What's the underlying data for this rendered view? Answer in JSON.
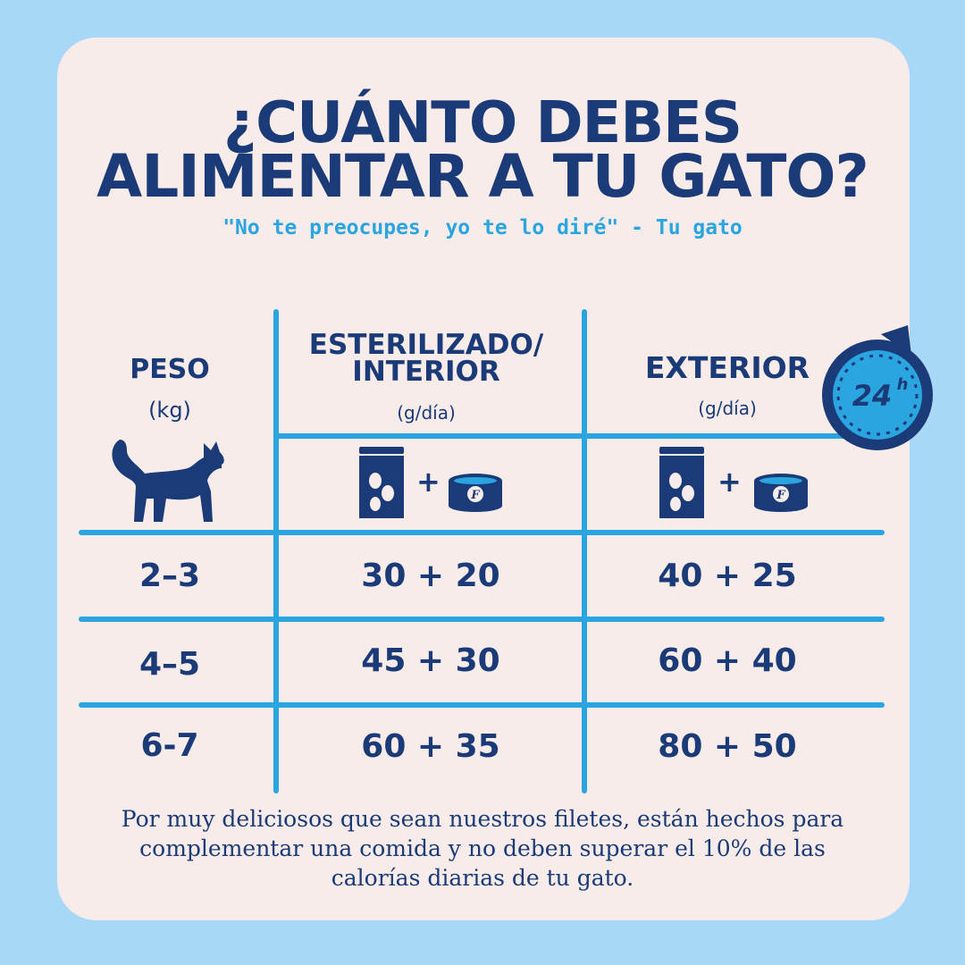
{
  "title": {
    "line1": "¿CUÁNTO DEBES",
    "line2": "ALIMENTAR A TU GATO?"
  },
  "subtitle": "\"No te preocupes, yo te lo diré\" - Tu gato",
  "table": {
    "headers": {
      "weight": {
        "label": "PESO",
        "unit": "(kg)"
      },
      "indoor": {
        "label_line1": "ESTERILIZADO/",
        "label_line2": "INTERIOR",
        "unit": "(g/día)"
      },
      "outdoor": {
        "label": "EXTERIOR",
        "unit": "(g/día)"
      }
    },
    "plus_symbol": "+",
    "rows": [
      {
        "weight": "2–3",
        "indoor": "30 + 20",
        "outdoor": "40 + 25"
      },
      {
        "weight": "4–5",
        "indoor": "45 + 30",
        "outdoor": "60 + 40"
      },
      {
        "weight": "6-7",
        "indoor": "60 + 35",
        "outdoor": "80 + 50"
      }
    ]
  },
  "badge": {
    "label": "24",
    "superscript": "h"
  },
  "icons": [
    "cat-icon",
    "dry-food-bag-icon",
    "wet-food-can-icon",
    "clock-24h-icon"
  ],
  "colors": {
    "background": "#a8d8f8",
    "card": "#f7ece9",
    "navy": "#1b3a78",
    "accent": "#2aa5e0"
  },
  "footer": {
    "line1": "Por muy deliciosos que sean nuestros filetes, están hechos para",
    "line2": "complementar una comida y no deben superar el 10% de las",
    "line3": "calorías diarias de tu gato."
  }
}
